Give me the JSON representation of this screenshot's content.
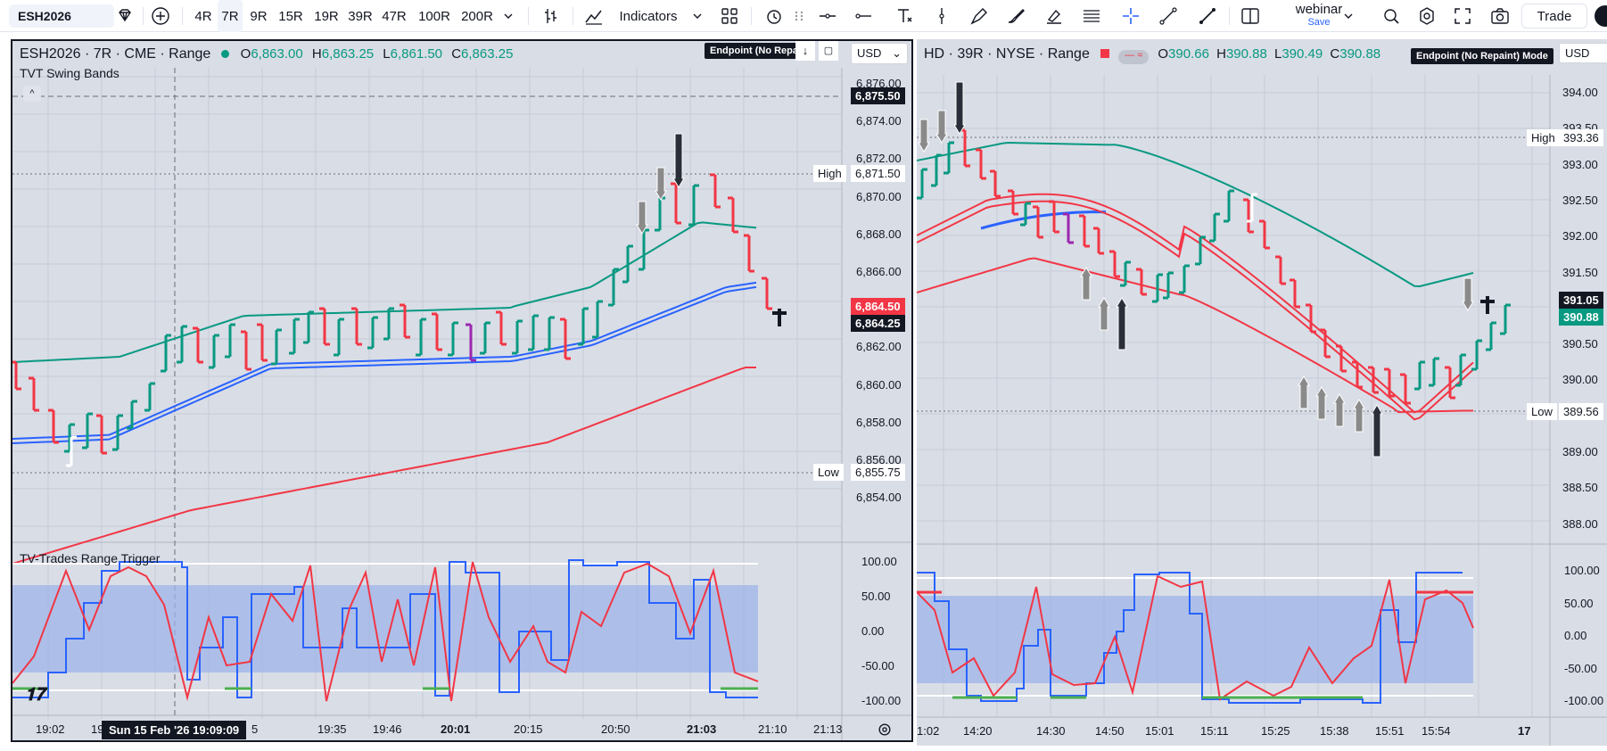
{
  "toolbar": {
    "symbol": "ESH2026",
    "intervals": [
      "4R",
      "7R",
      "9R",
      "15R",
      "19R",
      "39R",
      "47R",
      "100R",
      "200R"
    ],
    "active_interval": "7R",
    "indicators_label": "Indicators",
    "layout_name": "webinar",
    "layout_sub": "Save",
    "trade_label": "Trade"
  },
  "left_chart": {
    "title": "ESH2026 · 7R · CME · Range",
    "ohlc": {
      "o_label": "O",
      "o": "6,863.00",
      "h_label": "H",
      "h": "6,863.25",
      "l_label": "L",
      "l": "6,861.50",
      "c_label": "C",
      "c": "6,863.25"
    },
    "indicator_name": "TVT Swing Bands",
    "mode_badge": "Endpoint (No Repai",
    "currency": "USD",
    "price_axis": [
      "6,876.00",
      "6,874.00",
      "6,872.00",
      "6,870.00",
      "6,868.00",
      "6,866.00",
      "6,864.00",
      "6,862.00",
      "6,860.00",
      "6,858.00",
      "6,856.00",
      "6,854.00"
    ],
    "crosshair_price": "6,875.50",
    "high_label": "High",
    "high_value": "6,871.50",
    "low_label": "Low",
    "low_value": "6,855.75",
    "last_price_red": "6,864.50",
    "last_price_black": "6,864.25",
    "oscillator_name": "TV-Trades Range Trigger",
    "osc_axis": [
      "100.00",
      "50.00",
      "0.00",
      "-50.00",
      "-100.00"
    ],
    "time_axis": [
      "19:02",
      "19",
      "5",
      "19:35",
      "19:46",
      "20:01",
      "20:15",
      "20:50",
      "21:03",
      "21:10",
      "21:13"
    ],
    "crosshair_date": "Sun 15 Feb '26   19:09:09"
  },
  "right_chart": {
    "title": "HD · 39R · NYSE · Range",
    "ohlc": {
      "o_label": "O",
      "o": "390.66",
      "h_label": "H",
      "h": "390.88",
      "l_label": "L",
      "l": "390.49",
      "c_label": "C",
      "c": "390.88"
    },
    "mode_badge": "Endpoint (No Repaint) Mode",
    "currency": "USD",
    "price_axis": [
      "394.00",
      "393.50",
      "393.00",
      "392.50",
      "392.00",
      "391.50",
      "391.00",
      "390.50",
      "390.00",
      "389.50",
      "389.00",
      "388.50",
      "388.00"
    ],
    "high_label": "High",
    "high_value": "393.36",
    "low_label": "Low",
    "low_value": "389.56",
    "last_price_black": "391.05",
    "last_price_green": "390.88",
    "osc_axis": [
      "100.00",
      "50.00",
      "0.00",
      "-50.00",
      "-100.00"
    ],
    "time_axis": [
      "1:02",
      "14:20",
      "14:30",
      "14:50",
      "15:01",
      "15:11",
      "15:25",
      "15:38",
      "15:51",
      "15:54",
      "17"
    ]
  },
  "colors": {
    "up": "#089981",
    "down": "#f23645",
    "band_green": "#089981",
    "band_blue": "#2962ff",
    "band_red": "#f23645",
    "osc_fill": "#9db4e8",
    "purple": "#9c27b0"
  }
}
